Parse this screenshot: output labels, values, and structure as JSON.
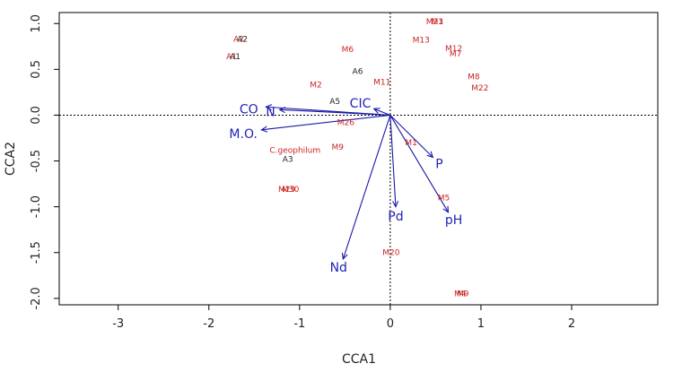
{
  "chart_data": {
    "type": "scatter",
    "title": "",
    "xlabel": "CCA1",
    "ylabel": "CCA2",
    "xlim": [
      -3.65,
      2.95
    ],
    "ylim": [
      -2.07,
      1.12
    ],
    "xticks": [
      -3,
      -2,
      -1,
      0,
      1,
      2
    ],
    "yticks": [
      -2.0,
      -1.5,
      -1.0,
      -0.5,
      0.0,
      0.5,
      1.0
    ],
    "xtick_labels": [
      "-3",
      "-2",
      "-1",
      "0",
      "1",
      "2"
    ],
    "ytick_labels": [
      "-2.0",
      "-1.5",
      "-1.0",
      "-0.5",
      "0.0",
      "0.5",
      "1.0"
    ],
    "colors": {
      "fungi": "#cc2222",
      "sites": "#222222",
      "arrows": "#1a1aaa",
      "arrow_labels": "#2222bb"
    },
    "fungi": [
      {
        "label": "M6",
        "x": -0.47,
        "y": 0.72
      },
      {
        "label": "M13",
        "x": 0.34,
        "y": 0.82
      },
      {
        "label": "M12",
        "x": 0.7,
        "y": 0.73
      },
      {
        "label": "M7",
        "x": 0.72,
        "y": 0.67
      },
      {
        "label": "M8",
        "x": 0.92,
        "y": 0.42
      },
      {
        "label": "M22",
        "x": 0.99,
        "y": 0.3
      },
      {
        "label": "M2",
        "x": -0.82,
        "y": 0.33
      },
      {
        "label": "M11",
        "x": -0.09,
        "y": 0.36
      },
      {
        "label": "M26",
        "x": -0.49,
        "y": -0.08
      },
      {
        "label": "M1",
        "x": 0.23,
        "y": -0.3
      },
      {
        "label": "C.geophilum",
        "x": -1.05,
        "y": -0.38
      },
      {
        "label": "M9",
        "x": -0.58,
        "y": -0.35
      },
      {
        "label": "M5",
        "x": 0.59,
        "y": -0.9
      },
      {
        "label": "M20",
        "x": 0.01,
        "y": -1.5
      },
      {
        "label": "M21",
        "x": 0.49,
        "y": 1.02
      },
      {
        "label": "M3",
        "x": 0.52,
        "y": 1.02
      },
      {
        "label": "M4",
        "x": 0.77,
        "y": -1.95
      },
      {
        "label": "M9",
        "x": 0.8,
        "y": -1.95
      },
      {
        "label": "M29",
        "x": -1.14,
        "y": -0.81
      },
      {
        "label": "M30",
        "x": -1.1,
        "y": -0.81
      },
      {
        "label": "A2",
        "x": -1.67,
        "y": 0.83
      },
      {
        "label": "A1",
        "x": -1.75,
        "y": 0.64
      }
    ],
    "sites": [
      {
        "label": "A2",
        "x": -1.63,
        "y": 0.83
      },
      {
        "label": "A1",
        "x": -1.71,
        "y": 0.64
      },
      {
        "label": "A6",
        "x": -0.36,
        "y": 0.48
      },
      {
        "label": "A5",
        "x": -0.61,
        "y": 0.15
      },
      {
        "label": "A3",
        "x": -1.13,
        "y": -0.48
      }
    ],
    "arrows": [
      {
        "label": "CO",
        "x": -1.37,
        "y": 0.09,
        "lx": -1.56,
        "ly": 0.07
      },
      {
        "label": "N",
        "x": -1.22,
        "y": 0.06,
        "lx": -1.32,
        "ly": 0.04
      },
      {
        "label": "M.O.",
        "x": -1.42,
        "y": -0.16,
        "lx": -1.62,
        "ly": -0.2
      },
      {
        "label": "CIC",
        "x": -0.18,
        "y": 0.07,
        "lx": -0.33,
        "ly": 0.13
      },
      {
        "label": "P",
        "x": 0.47,
        "y": -0.46,
        "lx": 0.54,
        "ly": -0.53
      },
      {
        "label": "Pd",
        "x": 0.06,
        "y": -1.0,
        "lx": 0.06,
        "ly": -1.1
      },
      {
        "label": "pH",
        "x": 0.64,
        "y": -1.06,
        "lx": 0.7,
        "ly": -1.14
      },
      {
        "label": "Nd",
        "x": -0.52,
        "y": -1.57,
        "lx": -0.57,
        "ly": -1.66
      }
    ]
  }
}
